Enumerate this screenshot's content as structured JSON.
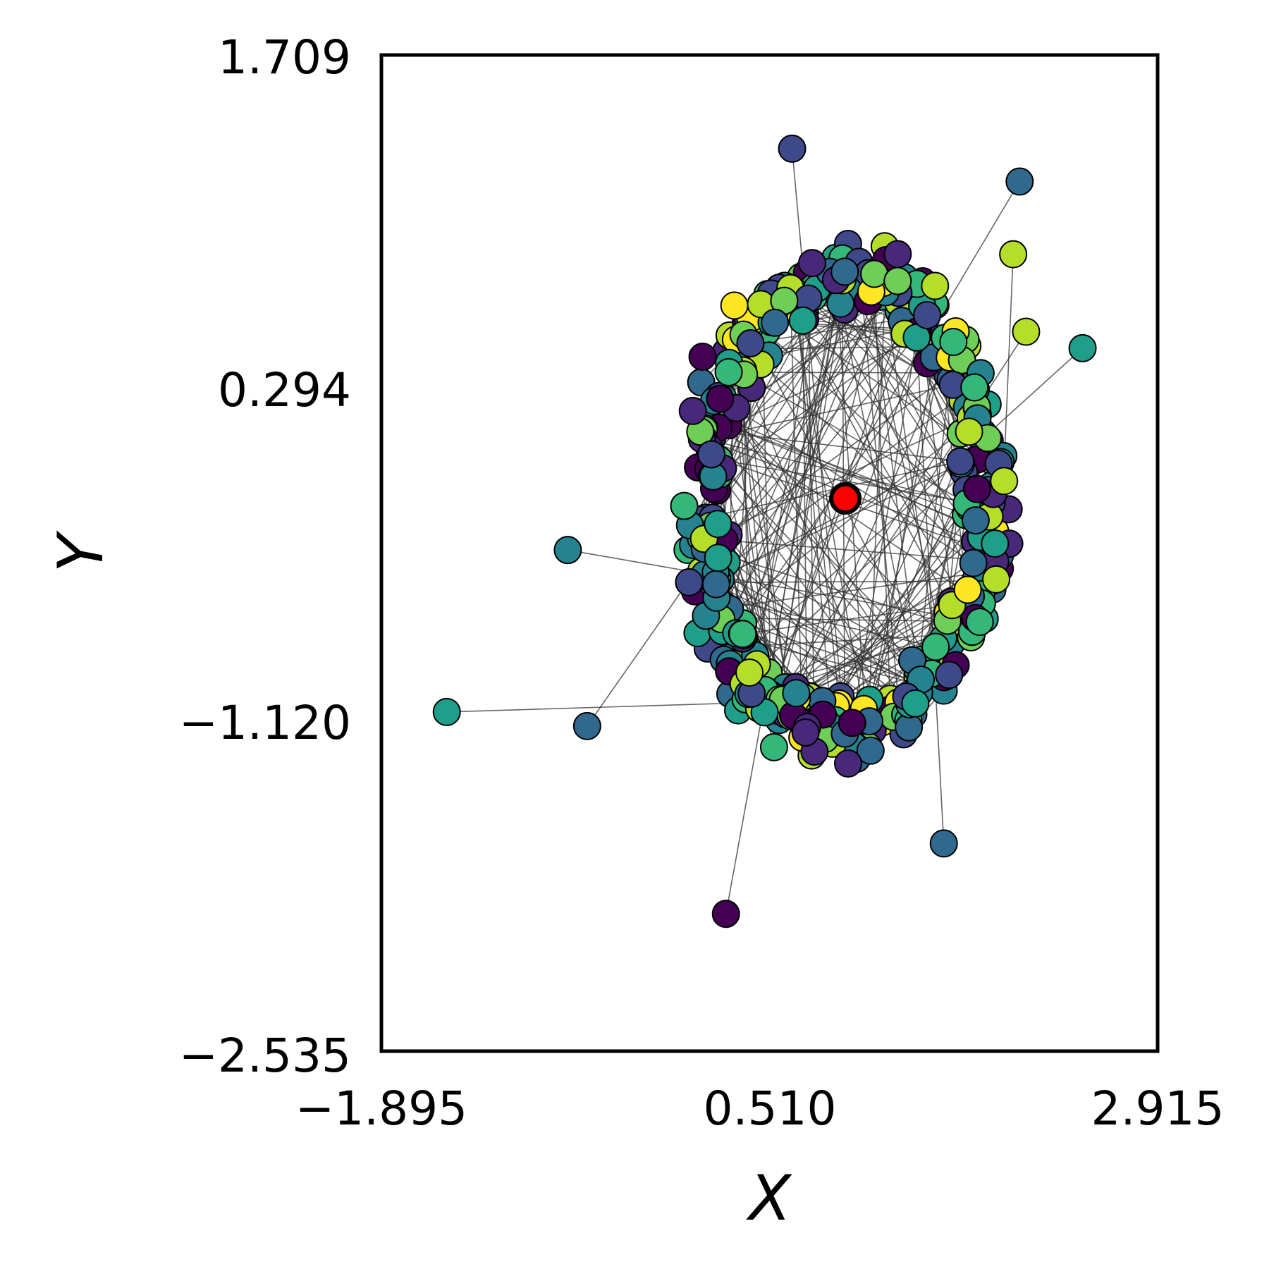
{
  "chart_data": {
    "type": "scatter",
    "title": "",
    "xlabel": "X",
    "ylabel": "Y",
    "xlim": [
      -1.895,
      2.915
    ],
    "ylim": [
      -2.535,
      1.709
    ],
    "xticks": [
      "−1.895",
      "0.510",
      "2.915"
    ],
    "yticks": [
      "1.709",
      "0.294",
      "−1.120",
      "−2.535"
    ],
    "grid": false,
    "legend": "none",
    "colormap": "viridis",
    "center_point": {
      "x": 0.98,
      "y": -0.18,
      "color": "#ff0000"
    },
    "notable_points": [
      {
        "x": 0.65,
        "y": 1.31
      },
      {
        "x": 2.06,
        "y": 1.17
      },
      {
        "x": 2.02,
        "y": 0.86
      },
      {
        "x": 2.45,
        "y": 0.46
      },
      {
        "x": 2.1,
        "y": 0.53
      },
      {
        "x": -1.49,
        "y": -1.09
      },
      {
        "x": -0.62,
        "y": -1.15
      },
      {
        "x": -0.74,
        "y": -0.4
      },
      {
        "x": 0.24,
        "y": -1.95
      },
      {
        "x": 1.59,
        "y": -1.65
      }
    ],
    "series": [
      {
        "description": "ring-shaped cloud of graph nodes around the center with connecting edges",
        "ring_center": [
          0.98,
          -0.2
        ],
        "ring_radius_x": 1.0,
        "ring_radius_y": 1.1,
        "point_count": 420,
        "color_range": [
          "#440154",
          "#fde725"
        ]
      }
    ]
  }
}
